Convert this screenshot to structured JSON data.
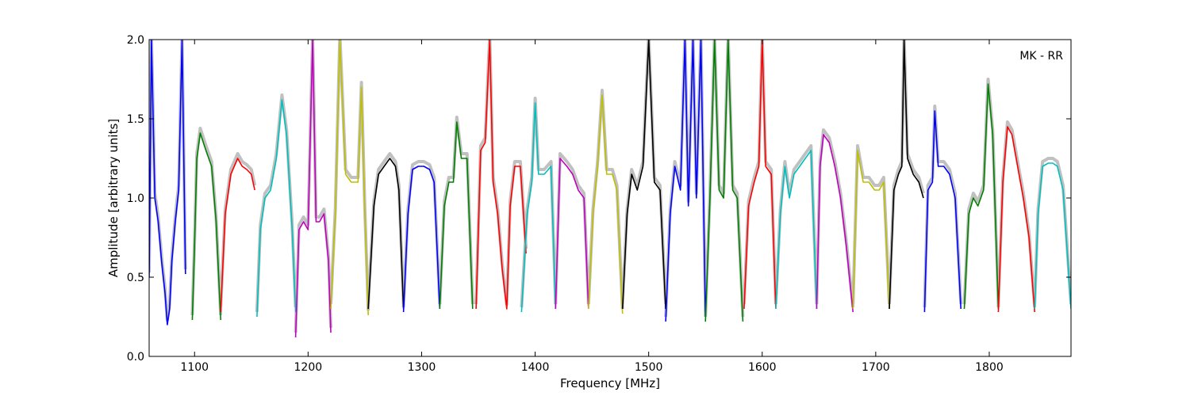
{
  "chart_data": {
    "type": "line",
    "title": "",
    "annotation": "MK - RR",
    "xlabel": "Frequency [MHz]",
    "ylabel": "Amplitude [arbitrary units]",
    "xlim": [
      1060,
      1872
    ],
    "ylim": [
      0.0,
      2.0
    ],
    "xticks": [
      1100,
      1200,
      1300,
      1400,
      1500,
      1600,
      1700,
      1800
    ],
    "yticks": [
      0.0,
      0.5,
      1.0,
      1.5,
      2.0
    ],
    "xtick_labels": [
      "1100",
      "1200",
      "1300",
      "1400",
      "1500",
      "1600",
      "1700",
      "1800"
    ],
    "ytick_labels": [
      "0.0",
      "0.5",
      "1.0",
      "1.5",
      "2.0"
    ],
    "grid": false,
    "background_color": "#c0c0c0",
    "series": [
      {
        "color": "#0000ff",
        "x": [
          1060,
          1062,
          1065,
          1068,
          1071,
          1074,
          1076,
          1078,
          1080,
          1083,
          1086,
          1089,
          1092
        ],
        "y": [
          0.5,
          2.0,
          1.0,
          0.85,
          0.6,
          0.4,
          0.2,
          0.3,
          0.6,
          0.85,
          1.05,
          2.0,
          0.52
        ]
      },
      {
        "color": "#008000",
        "x": [
          1098,
          1100,
          1102,
          1105,
          1110,
          1115,
          1119,
          1123
        ],
        "y": [
          0.23,
          0.7,
          1.25,
          1.41,
          1.3,
          1.2,
          0.85,
          0.23
        ]
      },
      {
        "color": "#ff0000",
        "x": [
          1123,
          1127,
          1132,
          1138,
          1142,
          1146,
          1150,
          1153
        ],
        "y": [
          0.28,
          0.9,
          1.15,
          1.25,
          1.2,
          1.18,
          1.15,
          1.05
        ]
      },
      {
        "color": "#00bfbf",
        "x": [
          1155,
          1158,
          1162,
          1167,
          1172,
          1177,
          1181,
          1186,
          1189
        ],
        "y": [
          0.25,
          0.8,
          1.0,
          1.05,
          1.25,
          1.62,
          1.4,
          0.8,
          0.28
        ]
      },
      {
        "color": "#bf00bf",
        "x": [
          1189,
          1192,
          1196,
          1200,
          1204,
          1207,
          1210,
          1214,
          1218,
          1220
        ],
        "y": [
          0.12,
          0.8,
          0.85,
          0.8,
          2.0,
          0.85,
          0.85,
          0.9,
          0.6,
          0.15
        ]
      },
      {
        "color": "#bfbf00",
        "x": [
          1220,
          1224,
          1228,
          1233,
          1238,
          1244,
          1247,
          1250,
          1253
        ],
        "y": [
          0.3,
          0.9,
          2.0,
          1.15,
          1.1,
          1.1,
          1.7,
          0.9,
          0.26
        ]
      },
      {
        "color": "#000000",
        "x": [
          1253,
          1258,
          1262,
          1267,
          1272,
          1277,
          1280,
          1284
        ],
        "y": [
          0.3,
          0.95,
          1.15,
          1.2,
          1.25,
          1.2,
          1.05,
          0.3
        ]
      },
      {
        "color": "#0000ff",
        "x": [
          1284,
          1288,
          1292,
          1297,
          1302,
          1307,
          1311,
          1316
        ],
        "y": [
          0.28,
          0.9,
          1.18,
          1.2,
          1.2,
          1.18,
          1.1,
          0.3
        ]
      },
      {
        "color": "#008000",
        "x": [
          1316,
          1320,
          1324,
          1328,
          1331,
          1335,
          1340,
          1345
        ],
        "y": [
          0.3,
          0.95,
          1.1,
          1.1,
          1.48,
          1.25,
          1.25,
          0.3
        ]
      },
      {
        "color": "#ff0000",
        "x": [
          1348,
          1352,
          1356,
          1360,
          1363,
          1367,
          1371,
          1375,
          1378,
          1382,
          1387,
          1392
        ],
        "y": [
          0.3,
          1.3,
          1.35,
          2.0,
          1.1,
          0.9,
          0.55,
          0.3,
          0.95,
          1.2,
          1.2,
          0.65
        ]
      },
      {
        "color": "#00bfbf",
        "x": [
          1388,
          1393,
          1397,
          1400,
          1403,
          1408,
          1414,
          1418
        ],
        "y": [
          0.28,
          0.9,
          1.1,
          1.6,
          1.15,
          1.15,
          1.2,
          0.3
        ]
      },
      {
        "color": "#bf00bf",
        "x": [
          1418,
          1422,
          1428,
          1433,
          1438,
          1443,
          1447
        ],
        "y": [
          0.3,
          1.25,
          1.2,
          1.15,
          1.05,
          1.0,
          0.3
        ]
      },
      {
        "color": "#bfbf00",
        "x": [
          1447,
          1451,
          1455,
          1459,
          1463,
          1468,
          1472,
          1477
        ],
        "y": [
          0.3,
          0.9,
          1.2,
          1.65,
          1.15,
          1.15,
          1.05,
          0.27
        ]
      },
      {
        "color": "#000000",
        "x": [
          1477,
          1481,
          1485,
          1490,
          1495,
          1500,
          1505,
          1510,
          1515
        ],
        "y": [
          0.3,
          0.9,
          1.15,
          1.05,
          1.2,
          2.0,
          1.1,
          1.05,
          0.3
        ]
      },
      {
        "color": "#0000ff",
        "x": [
          1515,
          1519,
          1523,
          1528,
          1532,
          1535,
          1539,
          1542,
          1546,
          1550
        ],
        "y": [
          0.22,
          0.9,
          1.2,
          1.05,
          2.0,
          0.95,
          2.0,
          1.0,
          2.0,
          0.25
        ]
      },
      {
        "color": "#008000",
        "x": [
          1550,
          1554,
          1558,
          1562,
          1566,
          1570,
          1574,
          1578,
          1583
        ],
        "y": [
          0.22,
          1.0,
          2.0,
          1.05,
          1.0,
          2.0,
          1.05,
          1.0,
          0.22
        ]
      },
      {
        "color": "#ff0000",
        "x": [
          1584,
          1588,
          1593,
          1597,
          1600,
          1603,
          1608,
          1612
        ],
        "y": [
          0.3,
          0.95,
          1.1,
          1.2,
          2.0,
          1.2,
          1.15,
          0.3
        ]
      },
      {
        "color": "#00bfbf",
        "x": [
          1612,
          1616,
          1620,
          1624,
          1628,
          1633,
          1638,
          1643,
          1648
        ],
        "y": [
          0.3,
          0.9,
          1.2,
          1.0,
          1.15,
          1.2,
          1.25,
          1.3,
          0.3
        ]
      },
      {
        "color": "#bf00bf",
        "x": [
          1648,
          1651,
          1654,
          1659,
          1664,
          1669,
          1674,
          1680
        ],
        "y": [
          0.3,
          1.2,
          1.4,
          1.35,
          1.2,
          1.0,
          0.7,
          0.28
        ]
      },
      {
        "color": "#bfbf00",
        "x": [
          1680,
          1684,
          1689,
          1694,
          1699,
          1703,
          1707,
          1712
        ],
        "y": [
          0.3,
          1.3,
          1.1,
          1.1,
          1.05,
          1.05,
          1.1,
          0.3
        ]
      },
      {
        "color": "#000000",
        "x": [
          1712,
          1716,
          1720,
          1723,
          1725,
          1728,
          1733,
          1738,
          1742
        ],
        "y": [
          0.3,
          1.05,
          1.15,
          1.2,
          2.0,
          1.25,
          1.15,
          1.1,
          1.0
        ]
      },
      {
        "color": "#0000ff",
        "x": [
          1743,
          1746,
          1750,
          1752,
          1755,
          1760,
          1765,
          1770,
          1775
        ],
        "y": [
          0.28,
          1.05,
          1.1,
          1.55,
          1.2,
          1.2,
          1.15,
          1.0,
          0.3
        ]
      },
      {
        "color": "#008000",
        "x": [
          1778,
          1782,
          1786,
          1790,
          1795,
          1799,
          1803,
          1808
        ],
        "y": [
          0.3,
          0.9,
          1.0,
          0.95,
          1.05,
          1.72,
          1.4,
          0.3
        ]
      },
      {
        "color": "#ff0000",
        "x": [
          1808,
          1812,
          1816,
          1820,
          1825,
          1830,
          1835,
          1840
        ],
        "y": [
          0.28,
          1.1,
          1.45,
          1.4,
          1.2,
          1.0,
          0.75,
          0.28
        ]
      },
      {
        "color": "#00bfbf",
        "x": [
          1840,
          1843,
          1847,
          1852,
          1856,
          1860,
          1865,
          1872
        ],
        "y": [
          0.3,
          0.9,
          1.2,
          1.22,
          1.22,
          1.2,
          1.05,
          0.3
        ]
      }
    ]
  }
}
